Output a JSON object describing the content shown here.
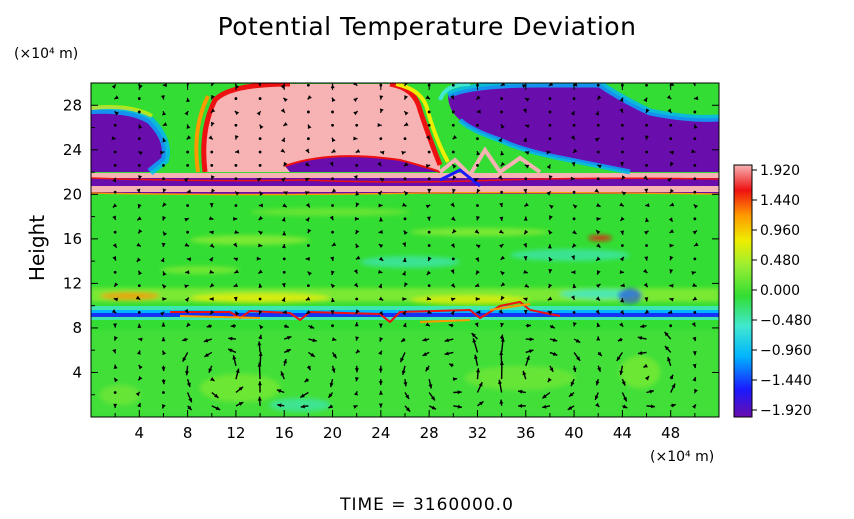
{
  "chart_data": {
    "type": "heatmap",
    "title": "Potential Temperature Deviation",
    "ylabel": "Height",
    "x_unit": "(×10⁴ m)",
    "y_unit": "(×10⁴ m)",
    "footer": "TIME  =  3160000.0",
    "xlim": [
      0,
      52
    ],
    "ylim": [
      0,
      30
    ],
    "x_ticks": [
      4,
      8,
      12,
      16,
      20,
      24,
      28,
      32,
      36,
      40,
      44,
      48
    ],
    "y_ticks": [
      4,
      8,
      12,
      16,
      20,
      24,
      28
    ],
    "colorbar": {
      "range": [
        -1.92,
        1.92
      ],
      "tick_labels": [
        "1.920",
        "1.440",
        "0.960",
        "0.480",
        "0.000",
        "−0.480",
        "−0.960",
        "−1.440",
        "−1.920"
      ],
      "colormap": [
        "#6a0dad",
        "#1a1aff",
        "#00b4ff",
        "#40e8d0",
        "#33dd33",
        "#99ee33",
        "#eeee00",
        "#ff9900",
        "#ee1111",
        "#f7b3b3"
      ]
    },
    "regions": [
      {
        "label": "upper-left warm dome",
        "x": [
          11,
          27
        ],
        "y": [
          21,
          30
        ],
        "value": 1.92
      },
      {
        "label": "upper-left cold cell",
        "x": [
          0,
          8
        ],
        "y": [
          22,
          27
        ],
        "value": -1.92
      },
      {
        "label": "upper-right cold cell",
        "x": [
          29,
          52
        ],
        "y": [
          22,
          30
        ],
        "value": -1.92
      },
      {
        "label": "tropopause warm band",
        "x": [
          0,
          52
        ],
        "y": [
          21,
          22
        ],
        "value": 1.92
      },
      {
        "label": "tropopause cold band",
        "x": [
          0,
          52
        ],
        "y": [
          19.8,
          21
        ],
        "value": -1.92
      },
      {
        "label": "inversion cold layer",
        "x": [
          0,
          52
        ],
        "y": [
          8.5,
          9.2
        ],
        "value": -1.2
      },
      {
        "label": "lower troposphere",
        "x": [
          0,
          52
        ],
        "y": [
          0,
          8.5
        ],
        "value": 0.2
      }
    ],
    "wind_vectors": "quiver field (unlabeled)",
    "grid": false
  }
}
